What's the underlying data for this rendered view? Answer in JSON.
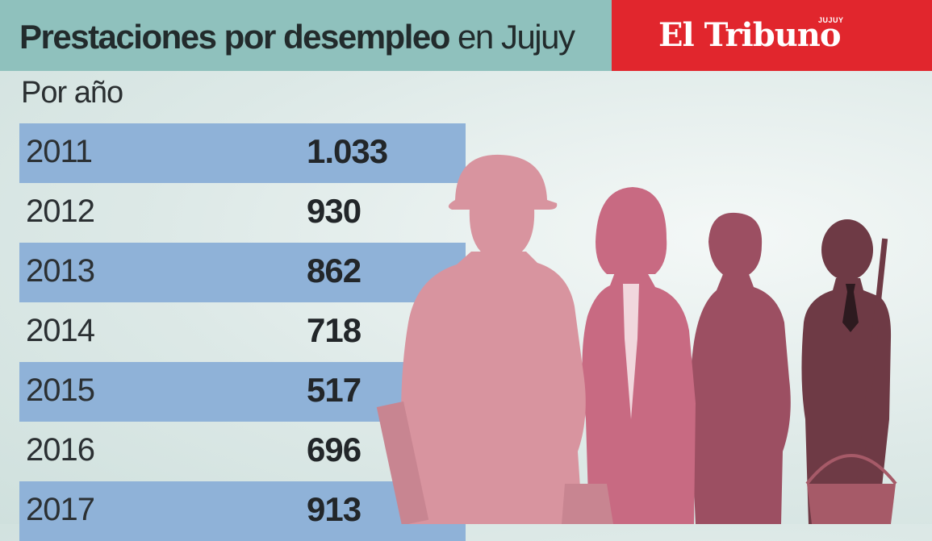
{
  "header": {
    "title_bold": "Prestaciones por desempleo",
    "title_rest": " en Jujuy"
  },
  "logo": {
    "name": "El Tribuno",
    "superscript": "JUJUY"
  },
  "subtitle": "Por año",
  "table": {
    "rows": [
      {
        "year": "2011",
        "value": "1.033"
      },
      {
        "year": "2012",
        "value": "930"
      },
      {
        "year": "2013",
        "value": "862"
      },
      {
        "year": "2014",
        "value": "718"
      },
      {
        "year": "2015",
        "value": "517"
      },
      {
        "year": "2016",
        "value": "696"
      },
      {
        "year": "2017",
        "value": "913"
      }
    ]
  },
  "illustration": {
    "icon": "workers-silhouettes-illustration",
    "colors": [
      "#d8949f",
      "#c86a82",
      "#9c4f62",
      "#6e3a45"
    ]
  },
  "colors": {
    "header_bg": "#8fc1bd",
    "logo_bg": "#e1262d",
    "row_highlight": "#8fb2d8"
  }
}
